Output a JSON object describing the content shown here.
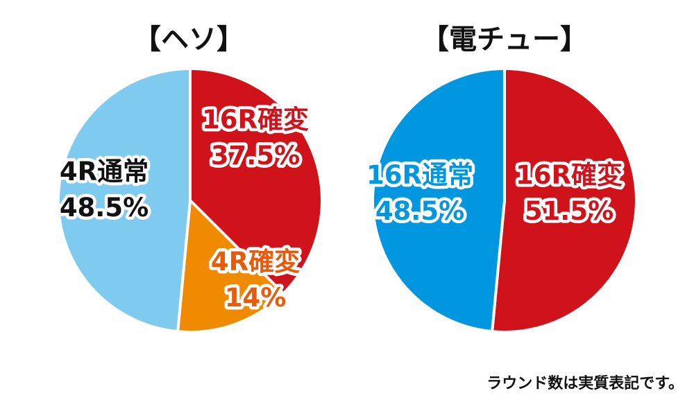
{
  "footnote": "ラウンド数は実質表記です。",
  "chart_data": [
    {
      "type": "pie",
      "title": "【ヘソ】",
      "slices": [
        {
          "label": "16R確変",
          "value": 37.5,
          "value_text": "37.5%",
          "color": "#d0121b",
          "text_color": "#d0121b"
        },
        {
          "label": "4R確変",
          "value": 14,
          "value_text": "14%",
          "color": "#f08a00",
          "text_color": "#e85a0c"
        },
        {
          "label": "4R通常",
          "value": 48.5,
          "value_text": "48.5%",
          "color": "#7fcbf0",
          "text_color": "#111111"
        }
      ]
    },
    {
      "type": "pie",
      "title": "【電チュー】",
      "slices": [
        {
          "label": "16R確変",
          "value": 51.5,
          "value_text": "51.5%",
          "color": "#d0121b",
          "text_color": "#d0121b"
        },
        {
          "label": "16R通常",
          "value": 48.5,
          "value_text": "48.5%",
          "color": "#0096e0",
          "text_color": "#0096e0"
        }
      ]
    }
  ]
}
